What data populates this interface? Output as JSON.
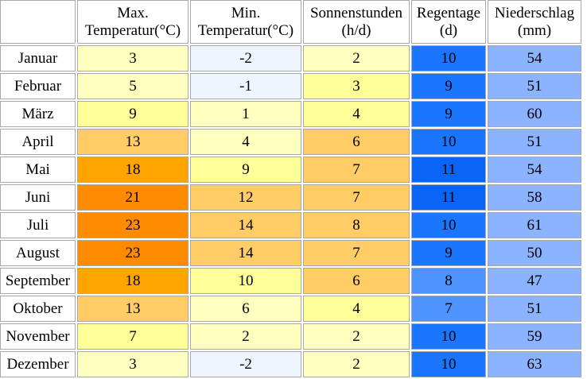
{
  "headers": [
    "",
    "Max.\nTemperatur(°C)",
    "Min.\nTemperatur(°C)",
    "Sonnenstunden\n(h/d)",
    "Regentage\n(d)",
    "Niederschlag\n(mm)"
  ],
  "rows": [
    {
      "month": "Januar",
      "max": "3",
      "min": "-2",
      "sun": "2",
      "rain_days": "10",
      "precip": "54"
    },
    {
      "month": "Februar",
      "max": "5",
      "min": "-1",
      "sun": "3",
      "rain_days": "9",
      "precip": "51"
    },
    {
      "month": "März",
      "max": "9",
      "min": "1",
      "sun": "4",
      "rain_days": "9",
      "precip": "60"
    },
    {
      "month": "April",
      "max": "13",
      "min": "4",
      "sun": "6",
      "rain_days": "10",
      "precip": "51"
    },
    {
      "month": "Mai",
      "max": "18",
      "min": "9",
      "sun": "7",
      "rain_days": "11",
      "precip": "54"
    },
    {
      "month": "Juni",
      "max": "21",
      "min": "12",
      "sun": "7",
      "rain_days": "11",
      "precip": "58"
    },
    {
      "month": "Juli",
      "max": "23",
      "min": "14",
      "sun": "8",
      "rain_days": "10",
      "precip": "61"
    },
    {
      "month": "August",
      "max": "23",
      "min": "14",
      "sun": "7",
      "rain_days": "9",
      "precip": "50"
    },
    {
      "month": "September",
      "max": "18",
      "min": "10",
      "sun": "6",
      "rain_days": "8",
      "precip": "47"
    },
    {
      "month": "Oktober",
      "max": "13",
      "min": "6",
      "sun": "4",
      "rain_days": "7",
      "precip": "51"
    },
    {
      "month": "November",
      "max": "7",
      "min": "2",
      "sun": "2",
      "rain_days": "10",
      "precip": "59"
    },
    {
      "month": "Dezember",
      "max": "3",
      "min": "-2",
      "sun": "2",
      "rain_days": "10",
      "precip": "63"
    }
  ],
  "colors": {
    "month": "#ffffff",
    "max": [
      "#ffffc0",
      "#ffffc0",
      "#ffff99",
      "#ffcc66",
      "#ffa500",
      "#ff8c00",
      "#ff8c00",
      "#ff8c00",
      "#ffa500",
      "#ffcc66",
      "#ffff99",
      "#ffffc0"
    ],
    "min": [
      "#eef5ff",
      "#eef5ff",
      "#ffffc0",
      "#ffffc0",
      "#ffff99",
      "#ffcc66",
      "#ffcc66",
      "#ffcc66",
      "#ffff99",
      "#ffffc0",
      "#ffffc0",
      "#eef5ff"
    ],
    "sun": [
      "#ffffc0",
      "#ffff99",
      "#ffff99",
      "#ffcc66",
      "#ffcc66",
      "#ffcc66",
      "#ffcc66",
      "#ffcc66",
      "#ffcc66",
      "#ffff99",
      "#ffffc0",
      "#ffffc0"
    ],
    "rain_days": [
      "#1a75ff",
      "#1a75ff",
      "#1a75ff",
      "#1a75ff",
      "#0a64f5",
      "#0a64f5",
      "#1a75ff",
      "#1a75ff",
      "#4d94ff",
      "#4d94ff",
      "#1a75ff",
      "#1a75ff"
    ],
    "precip": [
      "#8cb3ff",
      "#8cb3ff",
      "#8cb3ff",
      "#8cb3ff",
      "#8cb3ff",
      "#8cb3ff",
      "#8cb3ff",
      "#8cb3ff",
      "#8cb3ff",
      "#8cb3ff",
      "#8cb3ff",
      "#8cb3ff"
    ]
  }
}
